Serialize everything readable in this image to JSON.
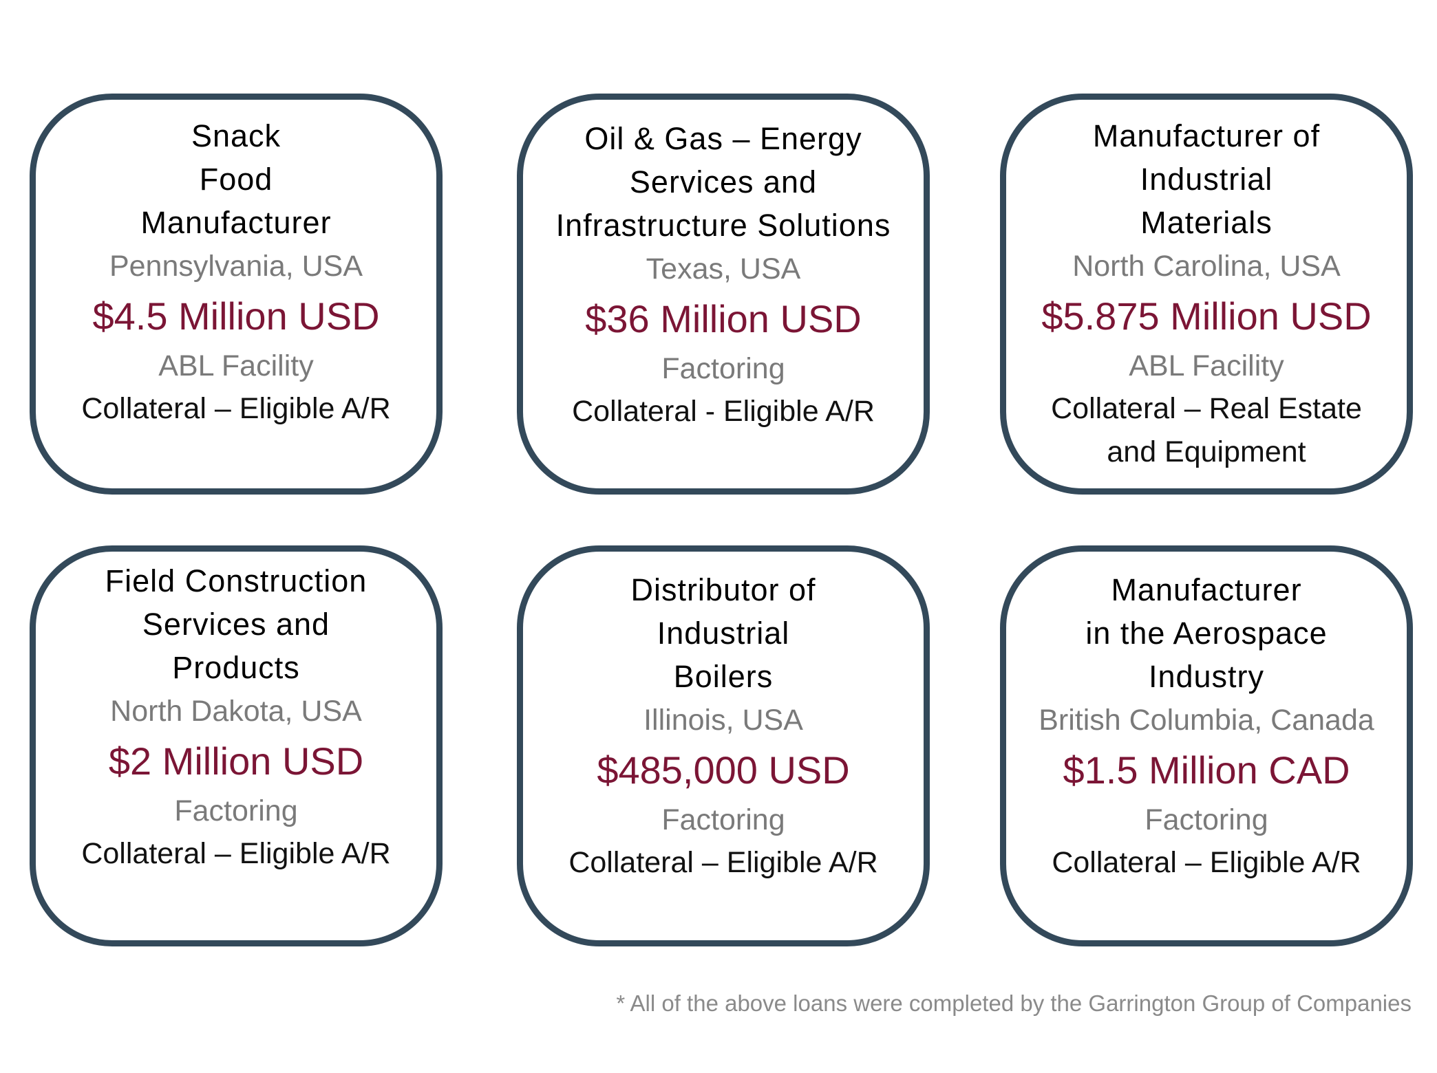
{
  "colors": {
    "border": "#33495a",
    "amount": "#7b1535",
    "secondary": "#7a7a7a"
  },
  "cards": [
    {
      "title": [
        "Snack",
        "Food",
        "Manufacturer"
      ],
      "location": "Pennsylvania, USA",
      "amount": "$4.5 Million USD",
      "type": "ABL Facility",
      "collateral": [
        "Collateral – Eligible A/R"
      ]
    },
    {
      "title": [
        "Oil & Gas – Energy",
        "Services and",
        "Infrastructure Solutions"
      ],
      "location": "Texas, USA",
      "amount": "$36 Million USD",
      "type": "Factoring",
      "collateral": [
        "Collateral - Eligible A/R"
      ]
    },
    {
      "title": [
        "Manufacturer of",
        "Industrial",
        "Materials"
      ],
      "location": "North Carolina, USA",
      "amount": "$5.875 Million USD",
      "type": "ABL Facility",
      "collateral": [
        "Collateral – Real Estate",
        "and Equipment"
      ]
    },
    {
      "title": [
        "Field Construction",
        "Services and",
        "Products"
      ],
      "location": "North Dakota, USA",
      "amount": "$2 Million USD",
      "type": "Factoring",
      "collateral": [
        "Collateral – Eligible A/R"
      ]
    },
    {
      "title": [
        "Distributor of",
        "Industrial",
        "Boilers"
      ],
      "location": "Illinois, USA",
      "amount": "$485,000 USD",
      "type": "Factoring",
      "collateral": [
        "Collateral – Eligible A/R"
      ]
    },
    {
      "title": [
        "Manufacturer",
        "in the Aerospace",
        "Industry"
      ],
      "location": "British Columbia, Canada",
      "amount": "$1.5 Million CAD",
      "type": "Factoring",
      "collateral": [
        "Collateral – Eligible A/R"
      ]
    }
  ],
  "footer": "* All of the above loans were completed by the Garrington Group of Companies"
}
